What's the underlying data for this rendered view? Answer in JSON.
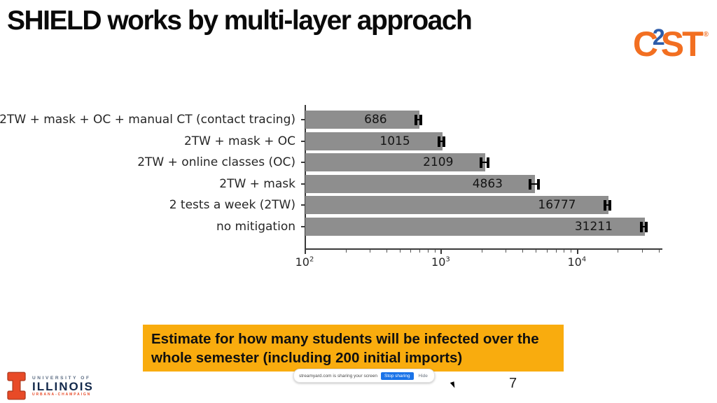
{
  "slide": {
    "title": "SHIELD works by multi-layer approach",
    "page_number": "7"
  },
  "c2st_logo": {
    "c": "C",
    "two": "2",
    "st": "ST",
    "reg": "®",
    "orange": "#F26F21",
    "blue": "#2D5CA9"
  },
  "chart_data": {
    "type": "bar",
    "orientation": "horizontal",
    "xscale": "log",
    "categories": [
      "2TW + mask + OC + manual CT (contact tracing)",
      "2TW + mask + OC",
      "2TW + online classes (OC)",
      "2TW + mask",
      "2 tests a week (2TW)",
      "no mitigation"
    ],
    "values": [
      686,
      1015,
      2109,
      4863,
      16777,
      31211
    ],
    "value_labels": [
      "686",
      "1015",
      "2109",
      "4863",
      "16777",
      "31211"
    ],
    "error_estimates": [
      25,
      40,
      130,
      330,
      700,
      1300
    ],
    "xlim": [
      100,
      42000
    ],
    "xticks": [
      {
        "value": 100,
        "base": "10",
        "exp": "2"
      },
      {
        "value": 1000,
        "base": "10",
        "exp": "3"
      },
      {
        "value": 10000,
        "base": "10",
        "exp": "4"
      }
    ],
    "bar_color": "#8E8E8E",
    "error_color": "#000000",
    "grid": false,
    "legend": false
  },
  "callout": {
    "lines": [
      "Estimate for how many students will be infected over the",
      "whole semester (including 200 initial imports)"
    ],
    "bg_color": "#F9AC0E"
  },
  "share_notification": {
    "message": "streamyard.com is sharing your screen",
    "stop_button": "Stop sharing",
    "hide_button": "Hide",
    "button_color": "#1A73E8"
  },
  "uiuc_logo": {
    "line1": "UNIVERSITY OF",
    "line2": "ILLINOIS",
    "line3": "URBANA-CHAMPAIGN",
    "navy": "#13294B",
    "orange": "#E84A27"
  }
}
